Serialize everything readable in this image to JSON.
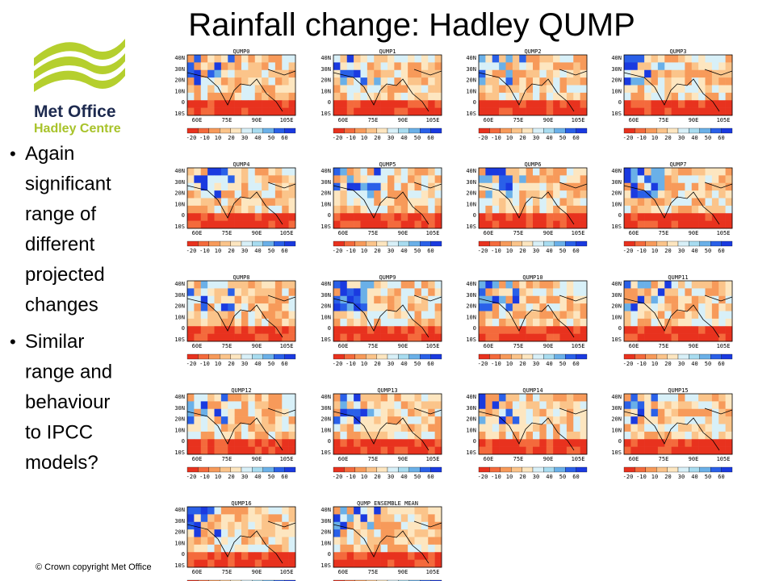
{
  "header": {
    "title": "Rainfall change: Hadley QUMP"
  },
  "logo": {
    "line1": "Met Office",
    "line2": "Hadley Centre"
  },
  "bullets": [
    {
      "lines": [
        "Again",
        "significant",
        "range of",
        "different",
        "projected",
        "changes"
      ]
    },
    {
      "lines": [
        "Similar",
        "range and",
        "behaviour",
        "to IPCC",
        "models?"
      ]
    }
  ],
  "footer": "© Crown copyright   Met Office",
  "panels": [
    "QUMP0",
    "QUMP1",
    "QUMP2",
    "QUMP3",
    "QUMP4",
    "QUMP5",
    "QUMP6",
    "QUMP7",
    "QUMP8",
    "QUMP9",
    "QUMP10",
    "QUMP11",
    "QUMP12",
    "QUMP13",
    "QUMP14",
    "QUMP15",
    "QUMP16",
    "QUMP ENSEMBLE MEAN"
  ],
  "y_labels": [
    "40N",
    "30N",
    "20N",
    "10N",
    "0",
    "10S"
  ],
  "x_labels": [
    "60E",
    "75E",
    "90E",
    "105E"
  ],
  "colorbar_labels": [
    "-20",
    "-10",
    "10",
    "20",
    "30",
    "40",
    "50",
    "60"
  ]
}
